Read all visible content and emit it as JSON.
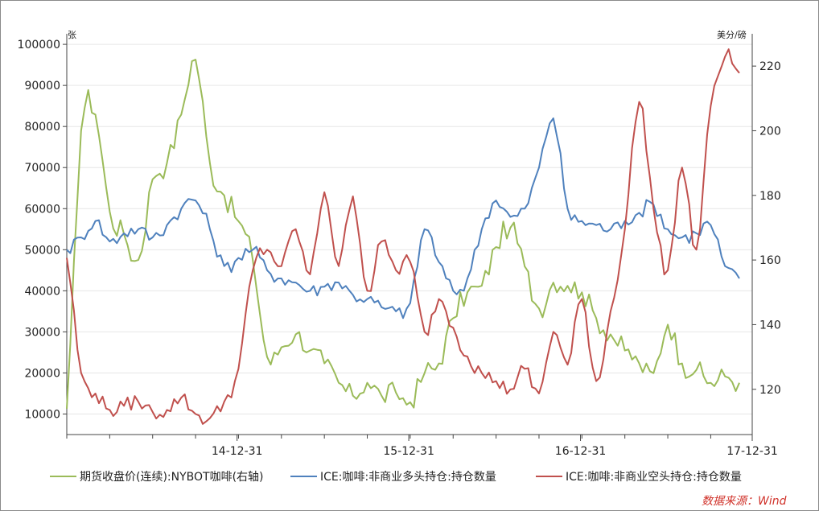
{
  "chart_data": {
    "type": "line",
    "title": "",
    "left_axis": {
      "unit": "张",
      "ticks": [
        10000,
        20000,
        30000,
        40000,
        50000,
        60000,
        70000,
        80000,
        90000,
        100000
      ],
      "ylim": [
        5000,
        101000
      ]
    },
    "right_axis": {
      "unit": "美分/磅",
      "ticks": [
        120,
        140,
        160,
        180,
        200,
        220
      ],
      "ylim": [
        106,
        228
      ]
    },
    "x_axis": {
      "tick_labels": [
        "14-12-31",
        "15-12-31",
        "16-12-31",
        "17-12-31"
      ],
      "range": [
        "2014-01",
        "2017-12"
      ]
    },
    "grid": "horizontal",
    "legend_position": "bottom",
    "series": [
      {
        "name": "期货收盘价(连续):NYBOT咖啡(右轴)",
        "axis": "right",
        "color": "#9bbb59",
        "x": [
          "2014-01",
          "2014-02",
          "2014-03",
          "2014-04",
          "2014-05",
          "2014-06",
          "2014-07",
          "2014-08",
          "2014-09",
          "2014-10",
          "2014-11",
          "2014-12",
          "2015-01",
          "2015-02",
          "2015-03",
          "2015-04",
          "2015-05",
          "2015-06",
          "2015-07",
          "2015-08",
          "2015-09",
          "2015-10",
          "2015-11",
          "2015-12",
          "2016-01",
          "2016-02",
          "2016-03",
          "2016-04",
          "2016-05",
          "2016-06",
          "2016-07",
          "2016-08",
          "2016-09",
          "2016-10",
          "2016-11",
          "2016-12",
          "2017-01",
          "2017-02",
          "2017-03",
          "2017-04",
          "2017-05",
          "2017-06",
          "2017-07",
          "2017-08",
          "2017-09",
          "2017-10",
          "2017-11",
          "2017-12"
        ],
        "values": [
          114,
          200,
          205,
          175,
          168,
          160,
          185,
          190,
          205,
          222,
          190,
          180,
          172,
          160,
          130,
          133,
          137,
          132,
          128,
          122,
          118,
          122,
          118,
          119,
          116,
          125,
          128,
          142,
          150,
          152,
          164,
          170,
          158,
          145,
          153,
          152,
          150,
          142,
          137,
          132,
          128,
          125,
          140,
          128,
          126,
          122,
          124,
          122
        ]
      },
      {
        "name": "ICE:咖啡:非商业多头持仓:持仓数量",
        "axis": "left",
        "color": "#4f81bd",
        "x": [
          "2014-01",
          "2014-02",
          "2014-03",
          "2014-04",
          "2014-05",
          "2014-06",
          "2014-07",
          "2014-08",
          "2014-09",
          "2014-10",
          "2014-11",
          "2014-12",
          "2015-01",
          "2015-02",
          "2015-03",
          "2015-04",
          "2015-05",
          "2015-06",
          "2015-07",
          "2015-08",
          "2015-09",
          "2015-10",
          "2015-11",
          "2015-12",
          "2016-01",
          "2016-02",
          "2016-03",
          "2016-04",
          "2016-05",
          "2016-06",
          "2016-07",
          "2016-08",
          "2016-09",
          "2016-10",
          "2016-11",
          "2016-12",
          "2017-01",
          "2017-02",
          "2017-03",
          "2017-04",
          "2017-05",
          "2017-06",
          "2017-07",
          "2017-08",
          "2017-09",
          "2017-10",
          "2017-11",
          "2017-12"
        ],
        "values": [
          50000,
          53000,
          57000,
          52000,
          54000,
          55000,
          53000,
          56000,
          60000,
          62000,
          55000,
          46000,
          48000,
          50000,
          45000,
          43000,
          42000,
          40000,
          41000,
          42000,
          39000,
          38000,
          36000,
          35000,
          37000,
          55000,
          47000,
          40000,
          43000,
          55000,
          62000,
          58000,
          60000,
          70000,
          82000,
          60000,
          57000,
          56000,
          55000,
          57000,
          59000,
          61000,
          55000,
          53000,
          54000,
          56000,
          46000,
          43000
        ]
      },
      {
        "name": "ICE:咖啡:非商业空头持仓:持仓数量",
        "axis": "left",
        "color": "#c0504d",
        "x": [
          "2014-01",
          "2014-02",
          "2014-03",
          "2014-04",
          "2014-05",
          "2014-06",
          "2014-07",
          "2014-08",
          "2014-09",
          "2014-10",
          "2014-11",
          "2014-12",
          "2015-01",
          "2015-02",
          "2015-03",
          "2015-04",
          "2015-05",
          "2015-06",
          "2015-07",
          "2015-08",
          "2015-09",
          "2015-10",
          "2015-11",
          "2015-12",
          "2016-01",
          "2016-02",
          "2016-03",
          "2016-04",
          "2016-05",
          "2016-06",
          "2016-07",
          "2016-08",
          "2016-09",
          "2016-10",
          "2016-11",
          "2016-12",
          "2017-01",
          "2017-02",
          "2017-03",
          "2017-04",
          "2017-05",
          "2017-06",
          "2017-07",
          "2017-08",
          "2017-09",
          "2017-10",
          "2017-11",
          "2017-12"
        ],
        "values": [
          48000,
          20000,
          15000,
          11000,
          12000,
          13000,
          10500,
          11000,
          14000,
          10000,
          9000,
          13000,
          21000,
          45000,
          50000,
          46000,
          55000,
          44000,
          64000,
          46000,
          63000,
          40000,
          52000,
          45000,
          47000,
          30000,
          38000,
          31000,
          24000,
          20000,
          18000,
          16000,
          21000,
          15000,
          30000,
          22000,
          38000,
          18000,
          35000,
          55000,
          86000,
          60000,
          45000,
          70000,
          50000,
          85000,
          97000,
          93000
        ]
      }
    ]
  },
  "source": "数据来源：Wind"
}
